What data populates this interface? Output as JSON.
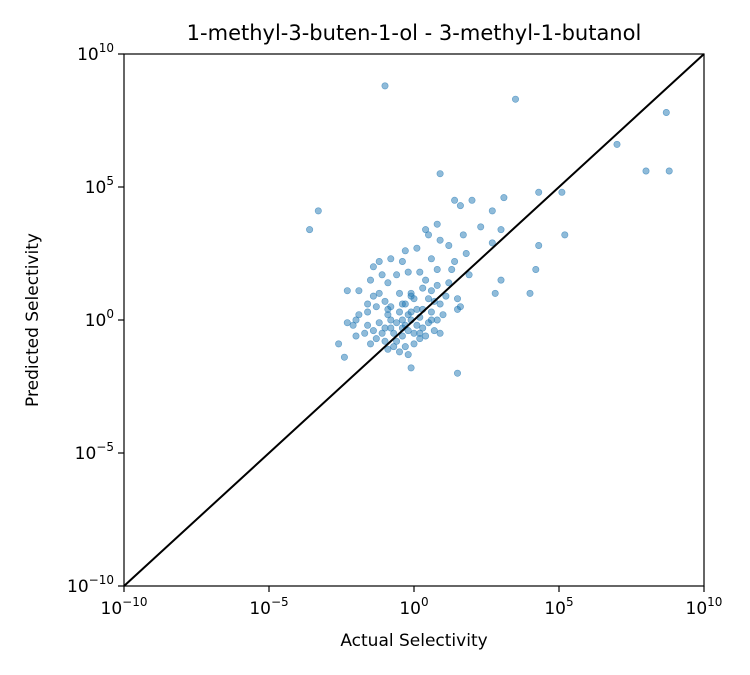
{
  "chart_data": {
    "type": "scatter",
    "title": "1-methyl-3-buten-1-ol - 3-methyl-1-butanol",
    "xlabel": "Actual Selectivity",
    "ylabel": "Predicted Selectivity",
    "xscale": "log",
    "yscale": "log",
    "xlim_exp": [
      -10,
      10
    ],
    "ylim_exp": [
      -10,
      10
    ],
    "xticks": [
      {
        "base": "10",
        "exp": "−10",
        "value_exp": -10
      },
      {
        "base": "10",
        "exp": "−5",
        "value_exp": -5
      },
      {
        "base": "10",
        "exp": "0",
        "value_exp": 0
      },
      {
        "base": "10",
        "exp": "5",
        "value_exp": 5
      },
      {
        "base": "10",
        "exp": "10",
        "value_exp": 10
      }
    ],
    "yticks": [
      {
        "base": "10",
        "exp": "−10",
        "value_exp": -10
      },
      {
        "base": "10",
        "exp": "−5",
        "value_exp": -5
      },
      {
        "base": "10",
        "exp": "0",
        "value_exp": 0
      },
      {
        "base": "10",
        "exp": "5",
        "value_exp": 5
      },
      {
        "base": "10",
        "exp": "10",
        "value_exp": 10
      }
    ],
    "grid": false,
    "marker_color": "#1f77b4",
    "reference_line": {
      "color": "#000000",
      "from_exp": [
        -10,
        -10
      ],
      "to_exp": [
        10,
        10
      ]
    },
    "points_log10": [
      [
        -1.0,
        8.8
      ],
      [
        3.5,
        8.3
      ],
      [
        8.7,
        7.8
      ],
      [
        7.0,
        6.6
      ],
      [
        8.0,
        5.6
      ],
      [
        8.8,
        5.6
      ],
      [
        0.9,
        5.5
      ],
      [
        1.4,
        4.5
      ],
      [
        1.6,
        4.3
      ],
      [
        2.0,
        4.5
      ],
      [
        2.7,
        4.1
      ],
      [
        3.1,
        4.6
      ],
      [
        5.1,
        4.8
      ],
      [
        4.3,
        4.8
      ],
      [
        2.3,
        3.5
      ],
      [
        3.0,
        3.4
      ],
      [
        -3.3,
        4.1
      ],
      [
        -3.6,
        3.4
      ],
      [
        0.4,
        3.4
      ],
      [
        0.5,
        3.2
      ],
      [
        0.8,
        3.6
      ],
      [
        0.9,
        3.0
      ],
      [
        1.7,
        3.2
      ],
      [
        1.2,
        2.8
      ],
      [
        1.8,
        2.5
      ],
      [
        2.7,
        2.9
      ],
      [
        4.3,
        2.8
      ],
      [
        5.2,
        3.2
      ],
      [
        -0.3,
        2.6
      ],
      [
        0.1,
        2.7
      ],
      [
        -0.4,
        2.2
      ],
      [
        -0.8,
        2.3
      ],
      [
        -1.2,
        2.2
      ],
      [
        0.6,
        2.3
      ],
      [
        1.3,
        1.9
      ],
      [
        1.9,
        1.7
      ],
      [
        1.4,
        2.2
      ],
      [
        0.2,
        1.8
      ],
      [
        0.8,
        1.9
      ],
      [
        -0.2,
        1.8
      ],
      [
        -0.6,
        1.7
      ],
      [
        -1.1,
        1.7
      ],
      [
        -1.5,
        1.5
      ],
      [
        -1.4,
        2.0
      ],
      [
        -0.9,
        1.4
      ],
      [
        -1.2,
        1.0
      ],
      [
        0.3,
        1.2
      ],
      [
        -0.1,
        1.0
      ],
      [
        0.6,
        1.1
      ],
      [
        0.8,
        1.3
      ],
      [
        1.1,
        0.9
      ],
      [
        1.5,
        0.8
      ],
      [
        3.0,
        1.5
      ],
      [
        4.2,
        1.9
      ],
      [
        2.8,
        1.0
      ],
      [
        4.0,
        1.0
      ],
      [
        1.6,
        0.5
      ],
      [
        1.5,
        0.4
      ],
      [
        -2.3,
        1.1
      ],
      [
        -1.9,
        1.1
      ],
      [
        -1.4,
        0.9
      ],
      [
        0.5,
        0.8
      ],
      [
        0.0,
        0.8
      ],
      [
        -0.4,
        0.6
      ],
      [
        -0.8,
        0.5
      ],
      [
        -1.3,
        0.5
      ],
      [
        0.3,
        0.4
      ],
      [
        0.6,
        0.3
      ],
      [
        0.9,
        0.6
      ],
      [
        1.0,
        0.2
      ],
      [
        -0.1,
        0.3
      ],
      [
        -0.5,
        0.3
      ],
      [
        -0.9,
        0.2
      ],
      [
        -1.6,
        0.3
      ],
      [
        -1.9,
        0.2
      ],
      [
        -2.0,
        0.0
      ],
      [
        -2.3,
        -0.1
      ],
      [
        -2.1,
        -0.2
      ],
      [
        -1.6,
        -0.2
      ],
      [
        -1.2,
        -0.1
      ],
      [
        -0.8,
        0.0
      ],
      [
        -0.4,
        0.0
      ],
      [
        -0.1,
        0.0
      ],
      [
        0.2,
        0.1
      ],
      [
        0.5,
        -0.1
      ],
      [
        0.8,
        0.0
      ],
      [
        -2.0,
        -0.6
      ],
      [
        -1.7,
        -0.5
      ],
      [
        -1.4,
        -0.4
      ],
      [
        -1.1,
        -0.5
      ],
      [
        -0.7,
        -0.5
      ],
      [
        -0.4,
        -0.3
      ],
      [
        -0.2,
        -0.4
      ],
      [
        0.1,
        -0.2
      ],
      [
        0.3,
        -0.3
      ],
      [
        0.7,
        -0.4
      ],
      [
        -1.5,
        -0.9
      ],
      [
        -1.0,
        -0.8
      ],
      [
        -0.6,
        -0.8
      ],
      [
        -0.3,
        -1.0
      ],
      [
        0.0,
        -0.9
      ],
      [
        0.2,
        -0.7
      ],
      [
        -0.9,
        -1.1
      ],
      [
        -0.5,
        -1.2
      ],
      [
        -0.2,
        -1.3
      ],
      [
        -2.6,
        -0.9
      ],
      [
        -2.4,
        -1.4
      ],
      [
        -0.1,
        -1.8
      ],
      [
        1.5,
        -2.0
      ],
      [
        0.9,
        -0.5
      ],
      [
        -0.3,
        0.6
      ],
      [
        -0.6,
        -0.1
      ],
      [
        0.4,
        -0.6
      ],
      [
        -0.2,
        0.2
      ],
      [
        -1.0,
        0.7
      ],
      [
        -0.8,
        -0.3
      ],
      [
        0.1,
        0.4
      ],
      [
        -0.4,
        -0.6
      ],
      [
        0.6,
        0.0
      ],
      [
        -1.3,
        -0.7
      ],
      [
        -0.5,
        1.0
      ],
      [
        -0.7,
        -1.0
      ],
      [
        0.2,
        -0.5
      ],
      [
        -0.1,
        0.9
      ],
      [
        -1.6,
        0.6
      ],
      [
        0.4,
        1.5
      ],
      [
        1.2,
        1.4
      ],
      [
        -0.3,
        -0.2
      ],
      [
        -1.0,
        -0.3
      ],
      [
        0.0,
        -0.5
      ],
      [
        -0.9,
        0.4
      ],
      [
        0.7,
        0.7
      ]
    ]
  }
}
